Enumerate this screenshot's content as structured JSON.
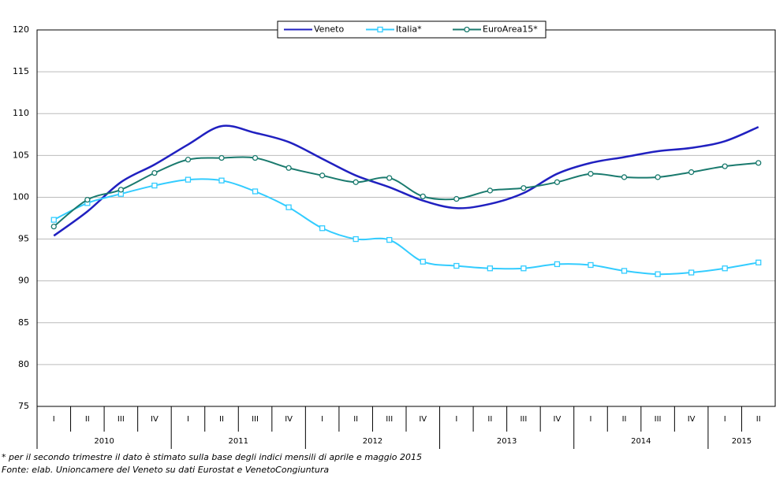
{
  "chart_data": {
    "type": "line",
    "categories": [
      "I",
      "II",
      "III",
      "IV",
      "I",
      "II",
      "III",
      "IV",
      "I",
      "II",
      "III",
      "IV",
      "I",
      "II",
      "III",
      "IV",
      "I",
      "II",
      "III",
      "IV",
      "I",
      "II"
    ],
    "category_groups": [
      "2010",
      "2010",
      "2010",
      "2010",
      "2011",
      "2011",
      "2011",
      "2011",
      "2012",
      "2012",
      "2012",
      "2012",
      "2013",
      "2013",
      "2013",
      "2013",
      "2014",
      "2014",
      "2014",
      "2014",
      "2015",
      "2015"
    ],
    "series": [
      {
        "name": "Veneto",
        "color": "#2020c0",
        "marker": "none",
        "values": [
          95.4,
          98.3,
          101.8,
          103.9,
          106.3,
          108.5,
          107.7,
          106.6,
          104.6,
          102.6,
          101.2,
          99.6,
          98.7,
          99.2,
          100.5,
          102.8,
          104.1,
          104.8,
          105.5,
          105.9,
          106.7,
          108.4
        ]
      },
      {
        "name": "Italia*",
        "color": "#33ccff",
        "marker": "square",
        "values": [
          97.3,
          99.3,
          100.4,
          101.4,
          102.1,
          102.0,
          100.7,
          98.8,
          96.3,
          95.0,
          94.9,
          92.3,
          91.8,
          91.5,
          91.5,
          92.0,
          91.9,
          91.2,
          90.8,
          91.0,
          91.5,
          92.2
        ]
      },
      {
        "name": "EuroArea15*",
        "color": "#1a7a6e",
        "marker": "circle",
        "values": [
          96.5,
          99.7,
          100.9,
          102.9,
          104.5,
          104.7,
          104.7,
          103.5,
          102.6,
          101.8,
          102.3,
          100.1,
          99.8,
          100.8,
          101.1,
          101.8,
          102.8,
          102.4,
          102.4,
          103.0,
          103.7,
          104.1
        ]
      }
    ],
    "ylim": [
      75,
      120
    ],
    "yticks": [
      75,
      80,
      85,
      90,
      95,
      100,
      105,
      110,
      115,
      120
    ],
    "grid": true,
    "legend": "top",
    "notes": [
      "* per il secondo trimestre il dato è stimato sulla base degli indici mensili di aprile e maggio 2015",
      "Fonte: elab. Unioncamere del Veneto su dati Eurostat e VenetoCongiuntura"
    ]
  }
}
